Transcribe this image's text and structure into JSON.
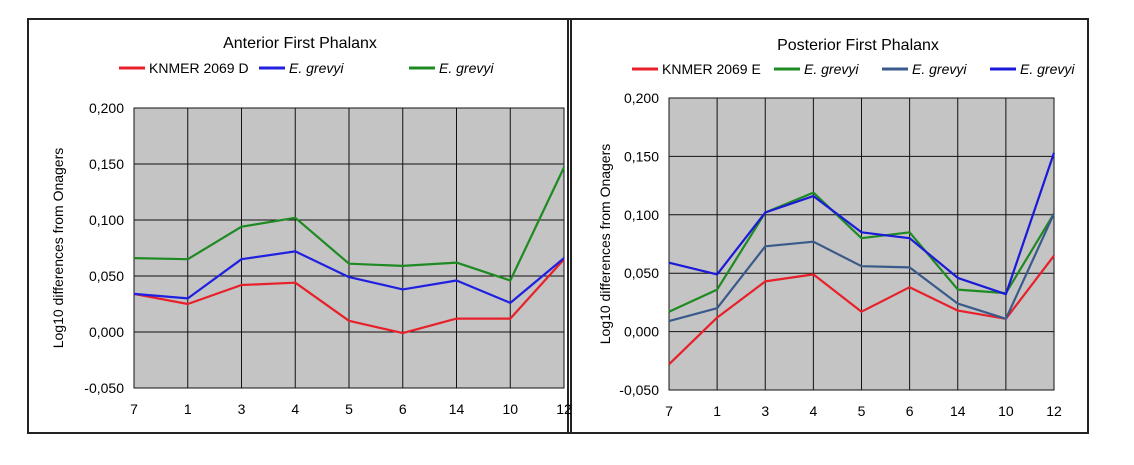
{
  "chart_data": [
    {
      "type": "line",
      "title": "Anterior First Phalanx",
      "xlabel": "",
      "ylabel": "Log10 differences from Onagers",
      "categories": [
        "7",
        "1",
        "3",
        "4",
        "5",
        "6",
        "14",
        "10",
        "12"
      ],
      "ylim": [
        -0.05,
        0.2
      ],
      "yticks": [
        "0,200",
        "0,150",
        "0,100",
        "0,050",
        "0,000",
        "-0,050"
      ],
      "ytick_values": [
        0.2,
        0.15,
        0.1,
        0.05,
        0.0,
        -0.05
      ],
      "grid": true,
      "legend_position": "top",
      "series": [
        {
          "name": "KNMER 2069 D",
          "label_style": "normal",
          "color": "#e8202a",
          "values": [
            0.034,
            0.025,
            0.042,
            0.044,
            0.01,
            -0.001,
            0.012,
            0.012,
            0.065
          ]
        },
        {
          "name": "E. grevyi",
          "label_style": "italic",
          "color": "#2020e0",
          "values": [
            0.034,
            0.03,
            0.065,
            0.072,
            0.049,
            0.038,
            0.046,
            0.026,
            0.066
          ]
        },
        {
          "name": "E. grevyi",
          "label_style": "italic",
          "color": "#1e8a22",
          "values": [
            0.066,
            0.065,
            0.094,
            0.102,
            0.061,
            0.059,
            0.062,
            0.046,
            0.147
          ]
        }
      ]
    },
    {
      "type": "line",
      "title": "Posterior First Phalanx",
      "xlabel": "",
      "ylabel": "Log10 differences from Onagers",
      "categories": [
        "7",
        "1",
        "3",
        "4",
        "5",
        "6",
        "14",
        "10",
        "12"
      ],
      "ylim": [
        -0.05,
        0.2
      ],
      "yticks": [
        "0,200",
        "0,150",
        "0,100",
        "0,050",
        "0,000",
        "-0,050"
      ],
      "ytick_values": [
        0.2,
        0.15,
        0.1,
        0.05,
        0.0,
        -0.05
      ],
      "grid": true,
      "legend_position": "top",
      "series": [
        {
          "name": "KNMER 2069 E",
          "label_style": "normal",
          "color": "#e8202a",
          "values": [
            -0.028,
            0.012,
            0.043,
            0.049,
            0.017,
            0.038,
            0.018,
            0.011,
            0.065
          ]
        },
        {
          "name": "E. grevyi",
          "label_style": "italic",
          "color": "#1e8a22",
          "values": [
            0.017,
            0.036,
            0.102,
            0.119,
            0.08,
            0.085,
            0.036,
            0.033,
            0.101
          ]
        },
        {
          "name": "E. grevyi",
          "label_style": "italic",
          "color": "#3a5a8a",
          "values": [
            0.009,
            0.02,
            0.073,
            0.077,
            0.056,
            0.055,
            0.024,
            0.011,
            0.101
          ]
        },
        {
          "name": "E. grevyi",
          "label_style": "italic",
          "color": "#1a1ad8",
          "values": [
            0.059,
            0.049,
            0.102,
            0.116,
            0.085,
            0.08,
            0.046,
            0.032,
            0.153
          ]
        }
      ]
    }
  ]
}
